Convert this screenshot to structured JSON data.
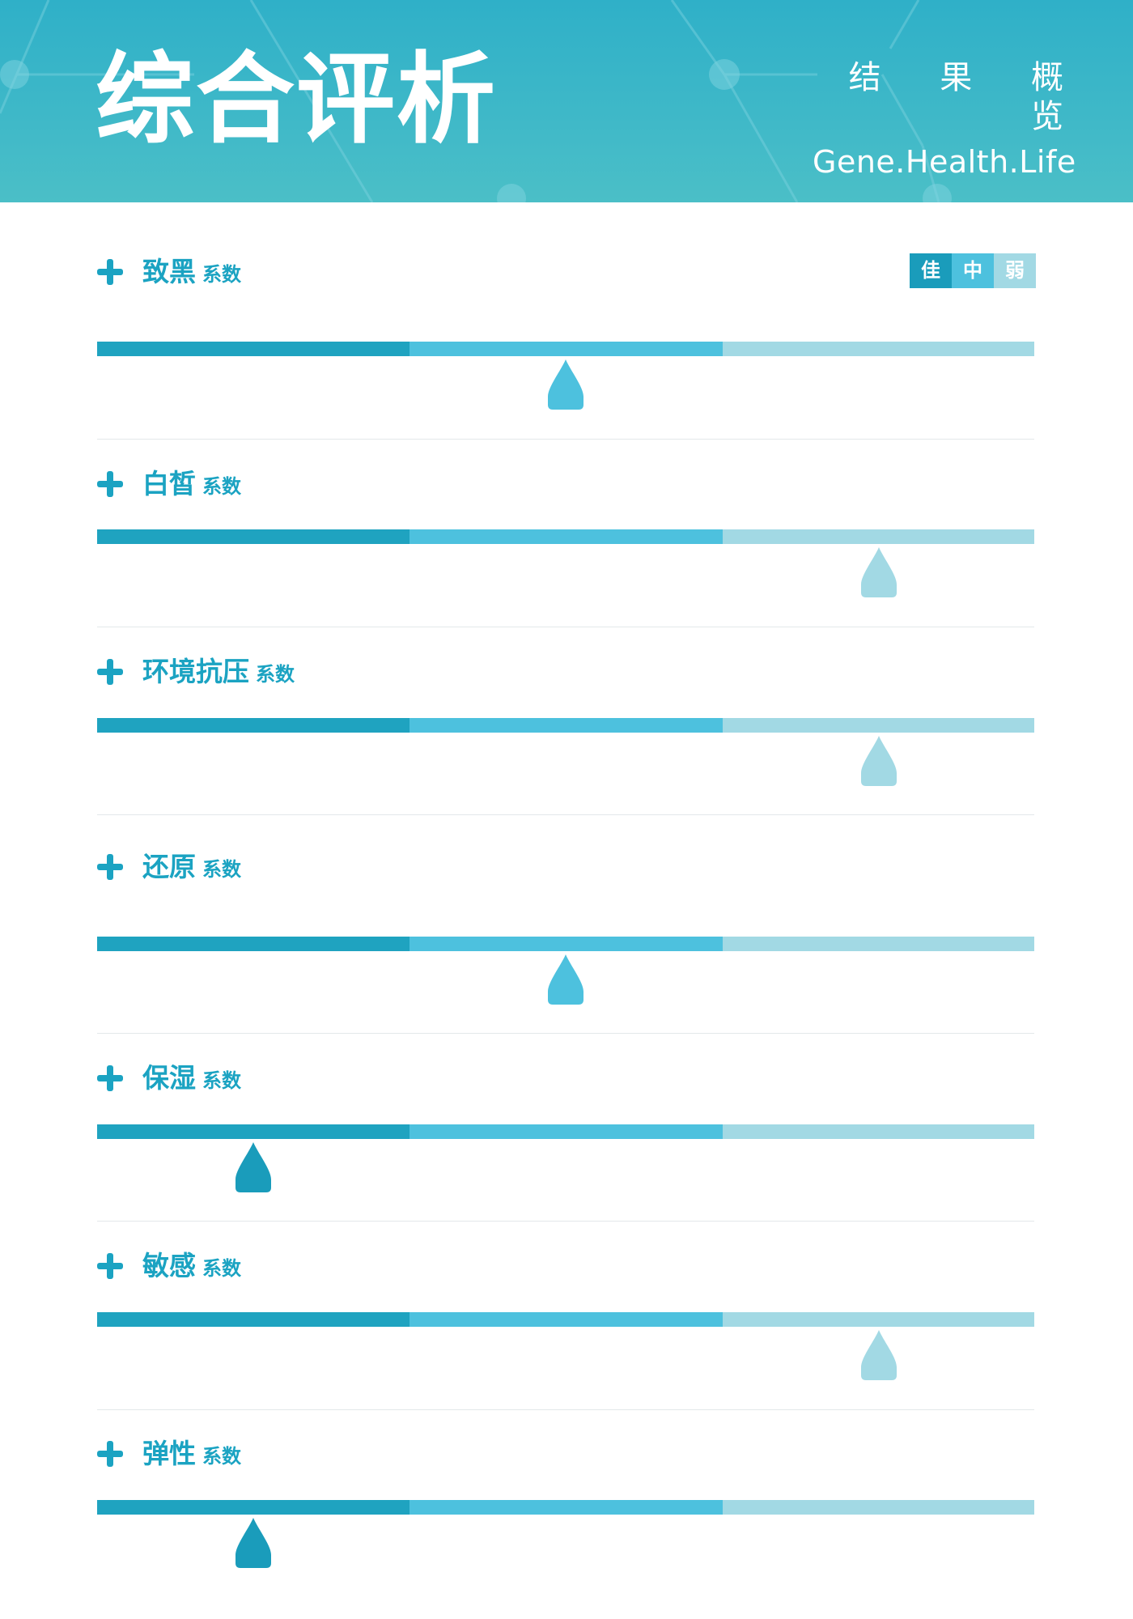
{
  "header": {
    "title": "综合评析",
    "subtitle_cn": "结 果 概 览",
    "subtitle_en": "Gene.Health.Life"
  },
  "legend": [
    {
      "label": "佳",
      "color": "#1a9cbb"
    },
    {
      "label": "中",
      "color": "#4dc1de"
    },
    {
      "label": "弱",
      "color": "#a2d9e4"
    }
  ],
  "level_colors": {
    "佳": "#1a9cbb",
    "中": "#4dc1de",
    "弱": "#a2d9e4"
  },
  "rows": [
    {
      "name": "致黑",
      "suffix": "系数",
      "level": "中"
    },
    {
      "name": "白皙",
      "suffix": "系数",
      "level": "弱"
    },
    {
      "name": "环境抗压",
      "suffix": "系数",
      "level": "弱"
    },
    {
      "name": "还原",
      "suffix": "系数",
      "level": "中"
    },
    {
      "name": "保湿",
      "suffix": "系数",
      "level": "佳"
    },
    {
      "name": "敏感",
      "suffix": "系数",
      "level": "弱"
    },
    {
      "name": "弹性",
      "suffix": "系数",
      "level": "佳"
    }
  ]
}
